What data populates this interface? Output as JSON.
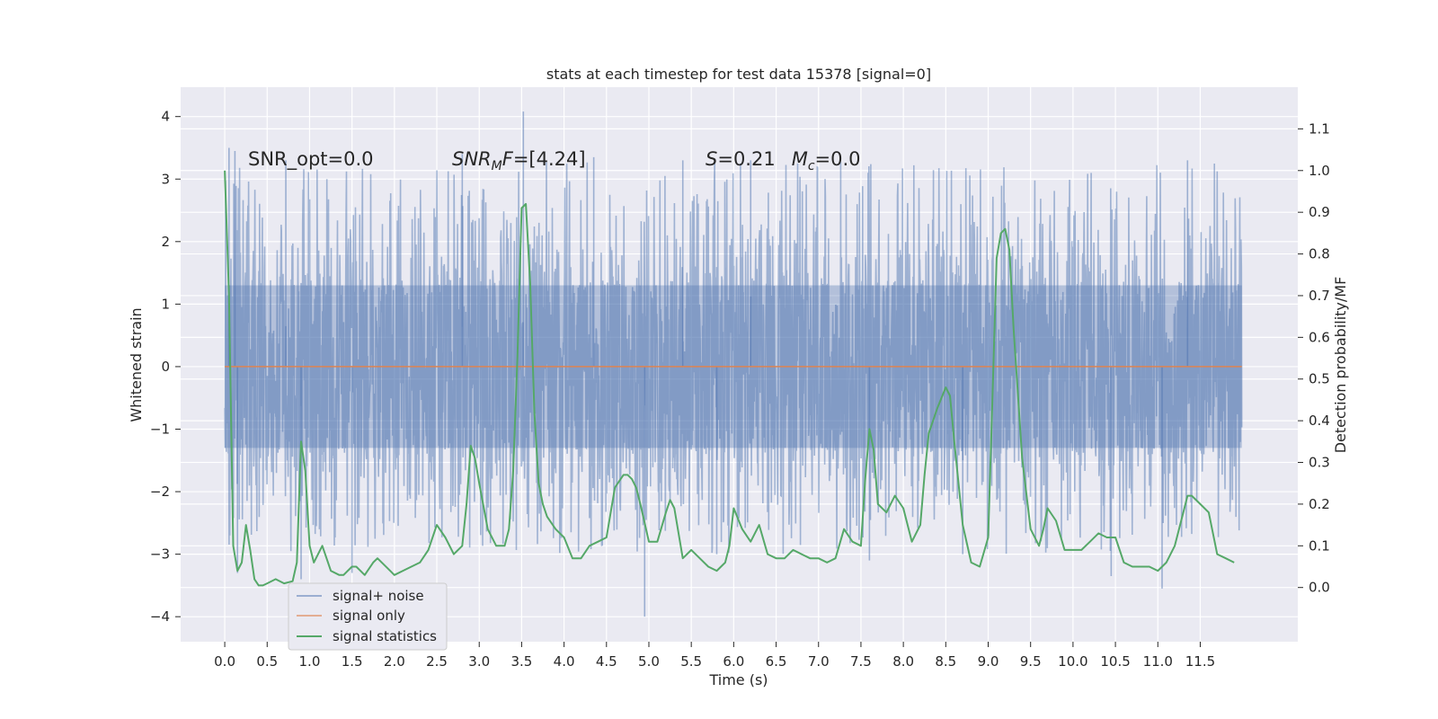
{
  "chart_data": {
    "type": "line",
    "title": "stats at each timestep for test data 15378 [signal=0]",
    "xlabel": "Time (s)",
    "ylabel": "Whitened strain",
    "y2label": "Detection probability/MF",
    "xlim": [
      -0.52,
      12.65
    ],
    "ylim": [
      -4.4,
      4.47
    ],
    "y2lim": [
      -0.13,
      1.2
    ],
    "x_ticks": [
      0.0,
      0.5,
      1.0,
      1.5,
      2.0,
      2.5,
      3.0,
      3.5,
      4.0,
      4.5,
      5.0,
      5.5,
      6.0,
      6.5,
      7.0,
      7.5,
      8.0,
      8.5,
      9.0,
      9.5,
      10.0,
      10.5,
      11.0,
      11.5
    ],
    "x_tick_labels": [
      "0.0",
      "0.5",
      "1.0",
      "1.5",
      "2.0",
      "2.5",
      "3.0",
      "3.5",
      "4.0",
      "4.5",
      "5.0",
      "5.5",
      "6.0",
      "6.5",
      "7.0",
      "7.5",
      "8.0",
      "8.5",
      "9.0",
      "9.5",
      "10.0",
      "10.5",
      "11.0",
      "11.5"
    ],
    "y_ticks": [
      -4,
      -3,
      -2,
      -1,
      0,
      1,
      2,
      3,
      4
    ],
    "y_tick_labels": [
      "−4",
      "−3",
      "−2",
      "−1",
      "0",
      "1",
      "2",
      "3",
      "4"
    ],
    "y2_ticks": [
      0.0,
      0.1,
      0.2,
      0.3,
      0.4,
      0.5,
      0.6,
      0.7,
      0.8,
      0.9,
      1.0,
      1.1
    ],
    "y2_tick_labels": [
      "0.0",
      "0.1",
      "0.2",
      "0.3",
      "0.4",
      "0.5",
      "0.6",
      "0.7",
      "0.8",
      "0.9",
      "1.0",
      "1.1"
    ],
    "grid": true,
    "legend_position": "lower-left",
    "annotations": [
      {
        "text": "SNR_opt=0.0",
        "x": 0.2,
        "y": 3.27
      },
      {
        "text": "SNRMF=[4.24]",
        "x": 2.6,
        "y": 3.27
      },
      {
        "text": "S=0.21   Mc=0.0",
        "x": 5.6,
        "y": 3.27
      }
    ],
    "series": [
      {
        "name": "signal+ noise",
        "color": "#4c72b0",
        "axis": "left",
        "description": "dense whitened noise trace",
        "x_range": [
          0.0,
          11.99
        ],
        "core_band": [
          -1.3,
          1.3
        ],
        "envelope": [
          -3.2,
          3.5
        ],
        "spikes": [
          {
            "x": 0.05,
            "y": 3.5
          },
          {
            "x": 0.12,
            "y": 3.45
          },
          {
            "x": 0.15,
            "y": -3.3
          },
          {
            "x": 0.72,
            "y": 3.3
          },
          {
            "x": 0.9,
            "y": -3.4
          },
          {
            "x": 1.5,
            "y": -3.3
          },
          {
            "x": 2.8,
            "y": 3.4
          },
          {
            "x": 3.52,
            "y": 4.08
          },
          {
            "x": 4.35,
            "y": 3.35
          },
          {
            "x": 4.95,
            "y": -4.0
          },
          {
            "x": 5.4,
            "y": 3.3
          },
          {
            "x": 5.8,
            "y": -3.0
          },
          {
            "x": 6.2,
            "y": 3.3
          },
          {
            "x": 7.6,
            "y": -3.1
          },
          {
            "x": 8.7,
            "y": -3.0
          },
          {
            "x": 10.45,
            "y": -3.35
          },
          {
            "x": 11.05,
            "y": -3.55
          },
          {
            "x": 11.35,
            "y": 3.3
          }
        ]
      },
      {
        "name": "signal only",
        "color": "#dd8452",
        "axis": "left",
        "x": [
          0.0,
          11.99
        ],
        "y": [
          0.0,
          0.0
        ]
      },
      {
        "name": "signal statistics",
        "color": "#55a868",
        "axis": "right",
        "x": [
          0.0,
          0.05,
          0.1,
          0.15,
          0.2,
          0.25,
          0.3,
          0.35,
          0.4,
          0.45,
          0.5,
          0.6,
          0.7,
          0.8,
          0.85,
          0.9,
          0.95,
          1.0,
          1.05,
          1.1,
          1.15,
          1.25,
          1.35,
          1.4,
          1.5,
          1.55,
          1.65,
          1.75,
          1.8,
          1.95,
          2.0,
          2.1,
          2.2,
          2.3,
          2.4,
          2.5,
          2.6,
          2.7,
          2.8,
          2.85,
          2.9,
          2.95,
          3.0,
          3.1,
          3.2,
          3.3,
          3.35,
          3.4,
          3.45,
          3.5,
          3.55,
          3.6,
          3.65,
          3.7,
          3.75,
          3.8,
          3.9,
          4.0,
          4.1,
          4.2,
          4.3,
          4.4,
          4.5,
          4.6,
          4.7,
          4.75,
          4.8,
          4.85,
          4.9,
          5.0,
          5.1,
          5.2,
          5.25,
          5.3,
          5.4,
          5.5,
          5.6,
          5.7,
          5.8,
          5.9,
          5.95,
          6.0,
          6.1,
          6.2,
          6.3,
          6.4,
          6.5,
          6.6,
          6.7,
          6.8,
          6.9,
          7.0,
          7.1,
          7.2,
          7.3,
          7.4,
          7.5,
          7.55,
          7.6,
          7.65,
          7.7,
          7.8,
          7.9,
          8.0,
          8.1,
          8.2,
          8.25,
          8.3,
          8.35,
          8.4,
          8.5,
          8.55,
          8.6,
          8.7,
          8.8,
          8.9,
          9.0,
          9.05,
          9.1,
          9.15,
          9.2,
          9.25,
          9.3,
          9.4,
          9.5,
          9.6,
          9.65,
          9.7,
          9.8,
          9.9,
          10.0,
          10.1,
          10.2,
          10.3,
          10.4,
          10.5,
          10.6,
          10.7,
          10.8,
          10.9,
          11.0,
          11.1,
          11.2,
          11.3,
          11.35,
          11.4,
          11.5,
          11.6,
          11.7,
          11.8,
          11.9
        ],
        "y": [
          1.0,
          0.7,
          0.1,
          0.04,
          0.06,
          0.15,
          0.09,
          0.02,
          0.005,
          0.005,
          0.01,
          0.02,
          0.01,
          0.015,
          0.06,
          0.35,
          0.28,
          0.1,
          0.06,
          0.08,
          0.1,
          0.04,
          0.03,
          0.03,
          0.05,
          0.05,
          0.03,
          0.06,
          0.07,
          0.04,
          0.03,
          0.04,
          0.05,
          0.06,
          0.09,
          0.15,
          0.12,
          0.08,
          0.1,
          0.2,
          0.34,
          0.31,
          0.25,
          0.14,
          0.1,
          0.1,
          0.14,
          0.28,
          0.55,
          0.91,
          0.92,
          0.73,
          0.42,
          0.25,
          0.2,
          0.17,
          0.14,
          0.12,
          0.07,
          0.07,
          0.1,
          0.11,
          0.12,
          0.24,
          0.27,
          0.27,
          0.26,
          0.24,
          0.2,
          0.11,
          0.11,
          0.18,
          0.21,
          0.19,
          0.07,
          0.09,
          0.07,
          0.05,
          0.04,
          0.06,
          0.1,
          0.19,
          0.14,
          0.11,
          0.15,
          0.08,
          0.07,
          0.07,
          0.09,
          0.08,
          0.07,
          0.07,
          0.06,
          0.07,
          0.14,
          0.11,
          0.1,
          0.26,
          0.38,
          0.33,
          0.2,
          0.18,
          0.22,
          0.19,
          0.11,
          0.15,
          0.27,
          0.37,
          0.4,
          0.43,
          0.48,
          0.46,
          0.35,
          0.15,
          0.06,
          0.05,
          0.12,
          0.45,
          0.79,
          0.85,
          0.86,
          0.81,
          0.62,
          0.31,
          0.14,
          0.1,
          0.14,
          0.19,
          0.16,
          0.09,
          0.09,
          0.09,
          0.11,
          0.13,
          0.12,
          0.12,
          0.06,
          0.05,
          0.05,
          0.05,
          0.04,
          0.06,
          0.1,
          0.18,
          0.22,
          0.22,
          0.2,
          0.18,
          0.08,
          0.07,
          0.06
        ]
      }
    ]
  }
}
